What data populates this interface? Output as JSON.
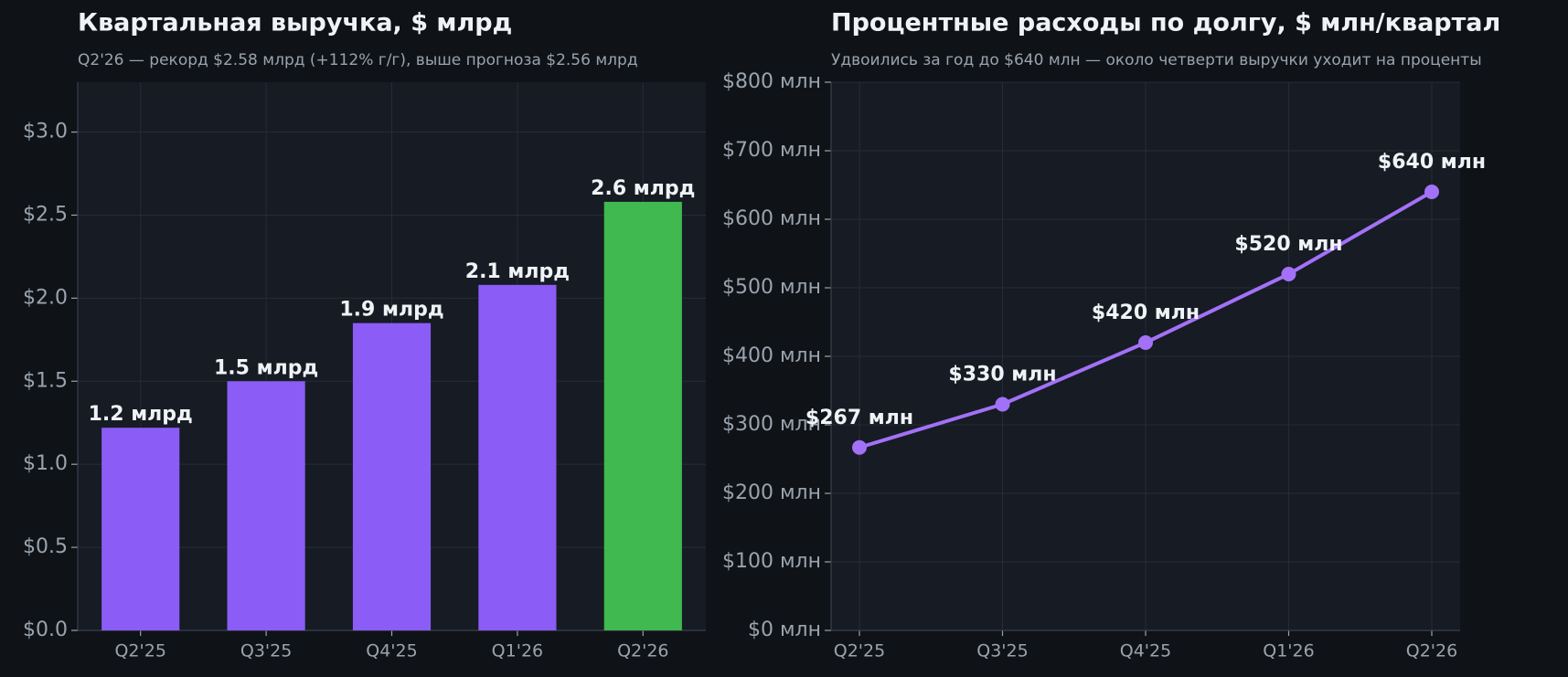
{
  "chart_data": [
    {
      "type": "bar",
      "title": "Квартальная выручка, $ млрд",
      "subtitle": "Q2'26 — рекорд $2.58 млрд (+112% г/г), выше прогноза $2.56 млрд",
      "categories": [
        "Q2'25",
        "Q3'25",
        "Q4'25",
        "Q1'26",
        "Q2'26"
      ],
      "values": [
        1.22,
        1.5,
        1.85,
        2.08,
        2.58
      ],
      "value_labels": [
        "1.2 млрд",
        "1.5 млрд",
        "1.9 млрд",
        "2.1 млрд",
        "2.6 млрд"
      ],
      "colors": [
        "#8b5cf6",
        "#8b5cf6",
        "#8b5cf6",
        "#8b5cf6",
        "#3fb950"
      ],
      "ylim": [
        0,
        3.3
      ],
      "yticks": [
        {
          "value": 0,
          "label": "$0.0"
        },
        {
          "value": 0.5,
          "label": "$0.5"
        },
        {
          "value": 1,
          "label": "$1.0"
        },
        {
          "value": 1.5,
          "label": "$1.5"
        },
        {
          "value": 2,
          "label": "$2.0"
        },
        {
          "value": 2.5,
          "label": "$2.5"
        },
        {
          "value": 3,
          "label": "$3.0"
        }
      ],
      "grid": true
    },
    {
      "type": "line",
      "title": "Процентные расходы по долгу, $ млн/квартал",
      "subtitle": "Удвоились за год до $640 млн — около четверти выручки уходит на проценты",
      "categories": [
        "Q2'25",
        "Q3'25",
        "Q4'25",
        "Q1'26",
        "Q2'26"
      ],
      "values": [
        267,
        330,
        420,
        520,
        640
      ],
      "value_labels": [
        "$267 млн",
        "$330 млн",
        "$420 млн",
        "$520 млн",
        "$640 млн"
      ],
      "color": "#a371f7",
      "ylim": [
        0,
        800
      ],
      "yticks": [
        {
          "value": 0,
          "label": "$0 млн"
        },
        {
          "value": 100,
          "label": "$100 млн"
        },
        {
          "value": 200,
          "label": "$200 млн"
        },
        {
          "value": 300,
          "label": "$300 млн"
        },
        {
          "value": 400,
          "label": "$400 млн"
        },
        {
          "value": 500,
          "label": "$500 млн"
        },
        {
          "value": 600,
          "label": "$600 млн"
        },
        {
          "value": 700,
          "label": "$700 млн"
        },
        {
          "value": 800,
          "label": "$800 млн"
        }
      ],
      "grid": true
    }
  ]
}
